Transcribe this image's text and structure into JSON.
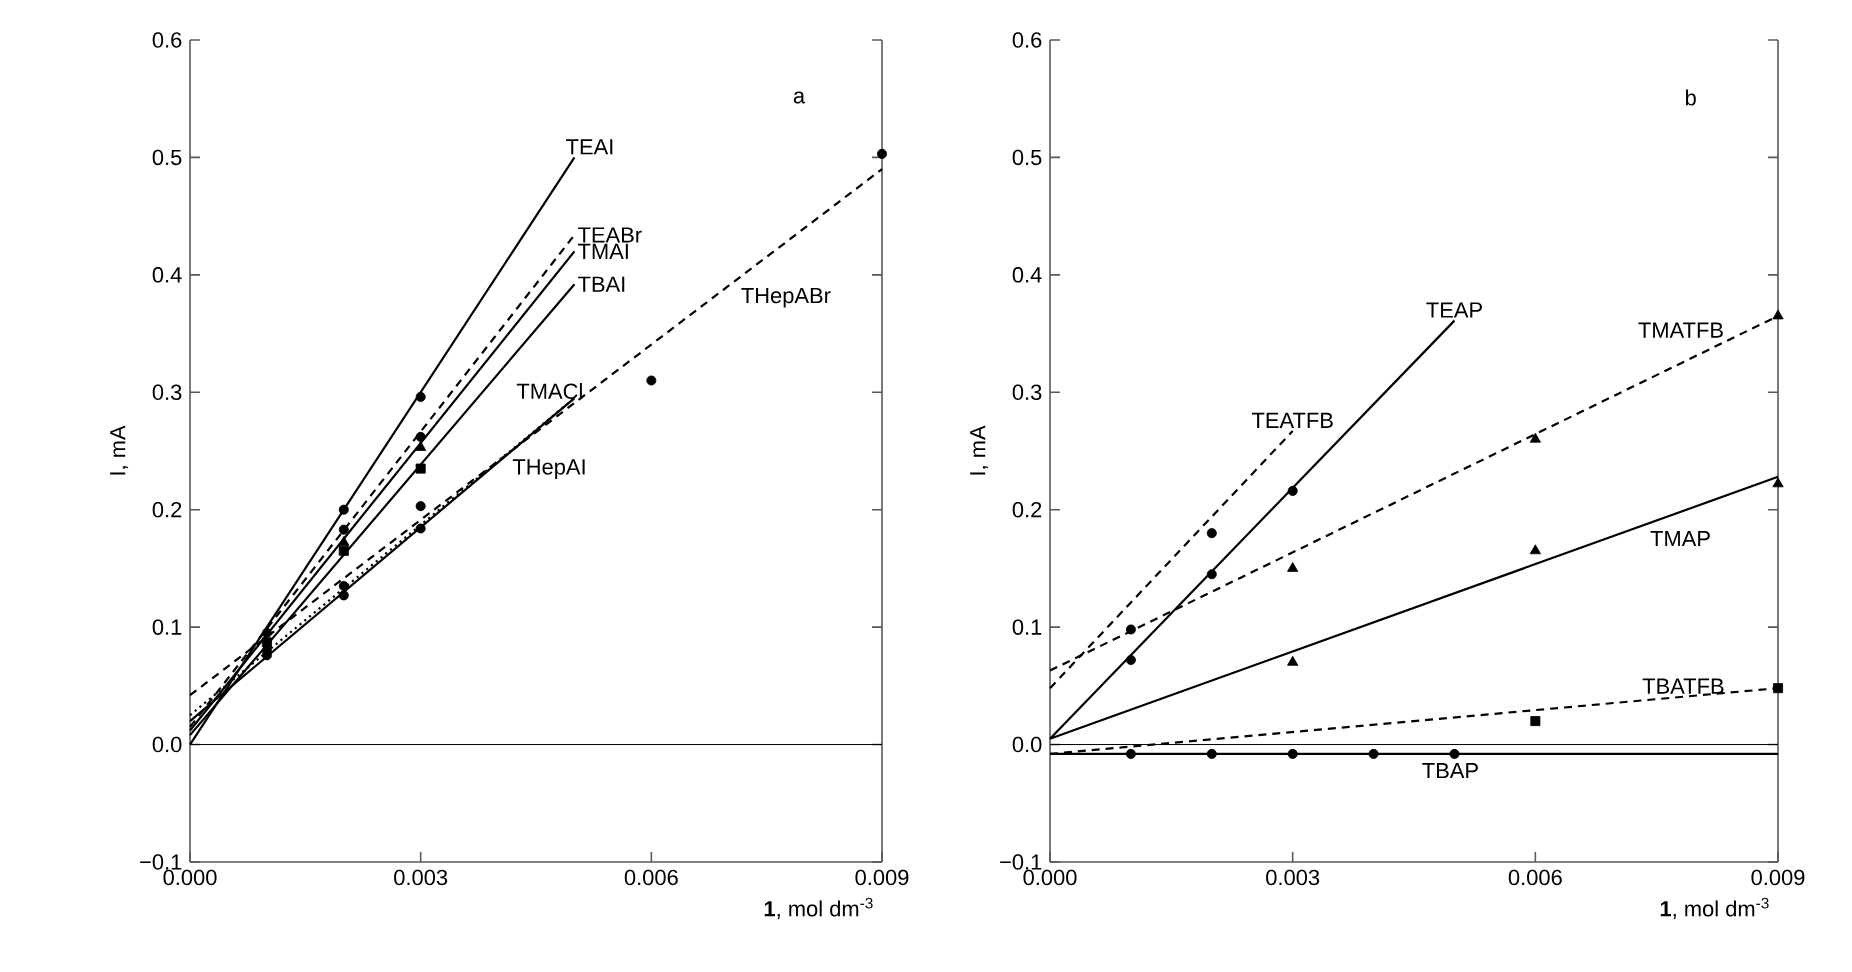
{
  "chart_data": [
    {
      "type": "line",
      "xlabel": "**1**, mol dm$^{-3}$",
      "ylabel": "I, mA",
      "annotations": [
        "a"
      ],
      "xlim": [
        0,
        0.009
      ],
      "ylim": [
        -0.1,
        0.6
      ],
      "xticks": [
        {
          "value": 0,
          "label": "0.000"
        },
        {
          "value": 0.003,
          "label": "0.003"
        },
        {
          "value": 0.006,
          "label": "0.006"
        },
        {
          "value": 0.009,
          "label": "0.009"
        }
      ],
      "yticks": [
        {
          "value": -0.1,
          "label": "−0.1"
        },
        {
          "value": 0,
          "label": "0.0"
        },
        {
          "value": 0.1,
          "label": "0.1"
        },
        {
          "value": 0.2,
          "label": "0.2"
        },
        {
          "value": 0.3,
          "label": "0.3"
        },
        {
          "value": 0.4,
          "label": "0.4"
        },
        {
          "value": 0.5,
          "label": "0.5"
        },
        {
          "value": 0.6,
          "label": "0.6"
        }
      ],
      "ref_lines": [
        {
          "axis": "y",
          "value": 0,
          "color": "#000000"
        }
      ],
      "series": [
        {
          "name": "TEAI",
          "line_style": "solid",
          "color": "#000000",
          "x": [
            0,
            0.005
          ],
          "values": [
            0.0,
            0.5
          ]
        },
        {
          "type": "scatter",
          "marker": "circle",
          "color": "#000000",
          "x": [
            0.002,
            0.003
          ],
          "values": [
            0.2,
            0.296
          ]
        },
        {
          "name": "TEABr",
          "line_style": "dashed",
          "color": "#000000",
          "x": [
            0,
            0.005
          ],
          "values": [
            0.015,
            0.434
          ]
        },
        {
          "type": "scatter",
          "marker": "circle",
          "color": "#000000",
          "x": [
            0.001,
            0.002,
            0.003
          ],
          "values": [
            0.095,
            0.183,
            0.262
          ]
        },
        {
          "name": "TMAI",
          "line_style": "solid",
          "color": "#000000",
          "x": [
            0,
            0.005
          ],
          "values": [
            0.012,
            0.42
          ]
        },
        {
          "type": "scatter",
          "marker": "triangle",
          "color": "#000000",
          "x": [
            0.002,
            0.003
          ],
          "values": [
            0.172,
            0.253
          ]
        },
        {
          "name": "TBAI",
          "line_style": "solid",
          "color": "#000000",
          "x": [
            0,
            0.005
          ],
          "values": [
            0.008,
            0.392
          ]
        },
        {
          "type": "scatter",
          "marker": "square",
          "color": "#000000",
          "x": [
            0.001,
            0.002,
            0.003
          ],
          "values": [
            0.087,
            0.165,
            0.235
          ]
        },
        {
          "name": "TMACl",
          "line_style": "dotted",
          "color": "#000000",
          "x": [
            0,
            0.005
          ],
          "values": [
            0.025,
            0.295
          ]
        },
        {
          "type": "scatter",
          "marker": "circle",
          "color": "#000000",
          "x": [
            0.001,
            0.002,
            0.003
          ],
          "values": [
            0.08,
            0.135,
            0.203
          ]
        },
        {
          "name": "THepAI",
          "line_style": "solid",
          "color": "#000000",
          "x": [
            0,
            0.005
          ],
          "values": [
            0.02,
            0.295
          ]
        },
        {
          "type": "scatter",
          "marker": "circle",
          "color": "#000000",
          "x": [
            0.001,
            0.002,
            0.003
          ],
          "values": [
            0.076,
            0.127,
            0.184
          ]
        },
        {
          "name": "THepABr",
          "line_style": "dashed",
          "color": "#000000",
          "x": [
            0,
            0.009
          ],
          "values": [
            0.042,
            0.49
          ]
        },
        {
          "type": "scatter",
          "marker": "circle",
          "color": "#000000",
          "x": [
            0.006,
            0.009
          ],
          "values": [
            0.31,
            0.503
          ]
        }
      ]
    },
    {
      "type": "line",
      "xlabel": "**1**, mol dm$^{-3}$",
      "ylabel": "I, mA",
      "annotations": [
        "b"
      ],
      "xlim": [
        0,
        0.009
      ],
      "ylim": [
        -0.1,
        0.6
      ],
      "xticks": [
        {
          "value": 0,
          "label": "0.000"
        },
        {
          "value": 0.003,
          "label": "0.003"
        },
        {
          "value": 0.006,
          "label": "0.006"
        },
        {
          "value": 0.009,
          "label": "0.009"
        }
      ],
      "yticks": [
        {
          "value": -0.1,
          "label": "−0.1"
        },
        {
          "value": 0,
          "label": "0.0"
        },
        {
          "value": 0.1,
          "label": "0.1"
        },
        {
          "value": 0.2,
          "label": "0.2"
        },
        {
          "value": 0.3,
          "label": "0.3"
        },
        {
          "value": 0.4,
          "label": "0.4"
        },
        {
          "value": 0.5,
          "label": "0.5"
        },
        {
          "value": 0.6,
          "label": "0.6"
        }
      ],
      "ref_lines": [
        {
          "axis": "y",
          "value": 0,
          "color": "#000000"
        }
      ],
      "series": [
        {
          "name": "TEATFB",
          "line_style": "dashed",
          "color": "#000000",
          "x": [
            0,
            0.003
          ],
          "values": [
            0.048,
            0.267
          ]
        },
        {
          "type": "scatter",
          "marker": "circle",
          "color": "#000000",
          "x": [
            0.001,
            0.002
          ],
          "values": [
            0.098,
            0.18
          ]
        },
        {
          "name": "TEAP",
          "line_style": "solid",
          "color": "#000000",
          "x": [
            0,
            0.005
          ],
          "values": [
            0.005,
            0.361
          ]
        },
        {
          "type": "scatter",
          "marker": "circle",
          "color": "#000000",
          "x": [
            0.001,
            0.002,
            0.003
          ],
          "values": [
            0.072,
            0.145,
            0.216
          ]
        },
        {
          "name": "TMATFB",
          "line_style": "dashed",
          "color": "#000000",
          "x": [
            0,
            0.009
          ],
          "values": [
            0.063,
            0.365
          ]
        },
        {
          "type": "scatter",
          "marker": "triangle",
          "color": "#000000",
          "x": [
            0.003,
            0.006,
            0.009
          ],
          "values": [
            0.15,
            0.26,
            0.365
          ]
        },
        {
          "name": "TMAP",
          "line_style": "solid",
          "color": "#000000",
          "x": [
            0,
            0.009
          ],
          "values": [
            0.005,
            0.228
          ]
        },
        {
          "type": "scatter",
          "marker": "triangle",
          "color": "#000000",
          "x": [
            0.003,
            0.006,
            0.009
          ],
          "values": [
            0.07,
            0.165,
            0.222
          ]
        },
        {
          "name": "TBATFB",
          "line_style": "dashed",
          "color": "#000000",
          "x": [
            0,
            0.009
          ],
          "values": [
            -0.008,
            0.048
          ]
        },
        {
          "type": "scatter",
          "marker": "square",
          "color": "#000000",
          "x": [
            0.006,
            0.009
          ],
          "values": [
            0.02,
            0.048
          ]
        },
        {
          "name": "TBAP",
          "line_style": "solid",
          "color": "#000000",
          "x": [
            0,
            0.009
          ],
          "values": [
            -0.008,
            -0.008
          ]
        },
        {
          "type": "scatter",
          "marker": "circle",
          "color": "#000000",
          "x": [
            0.001,
            0.002,
            0.003,
            0.004,
            0.005
          ],
          "values": [
            -0.008,
            -0.008,
            -0.008,
            -0.008,
            -0.008
          ]
        }
      ]
    }
  ]
}
